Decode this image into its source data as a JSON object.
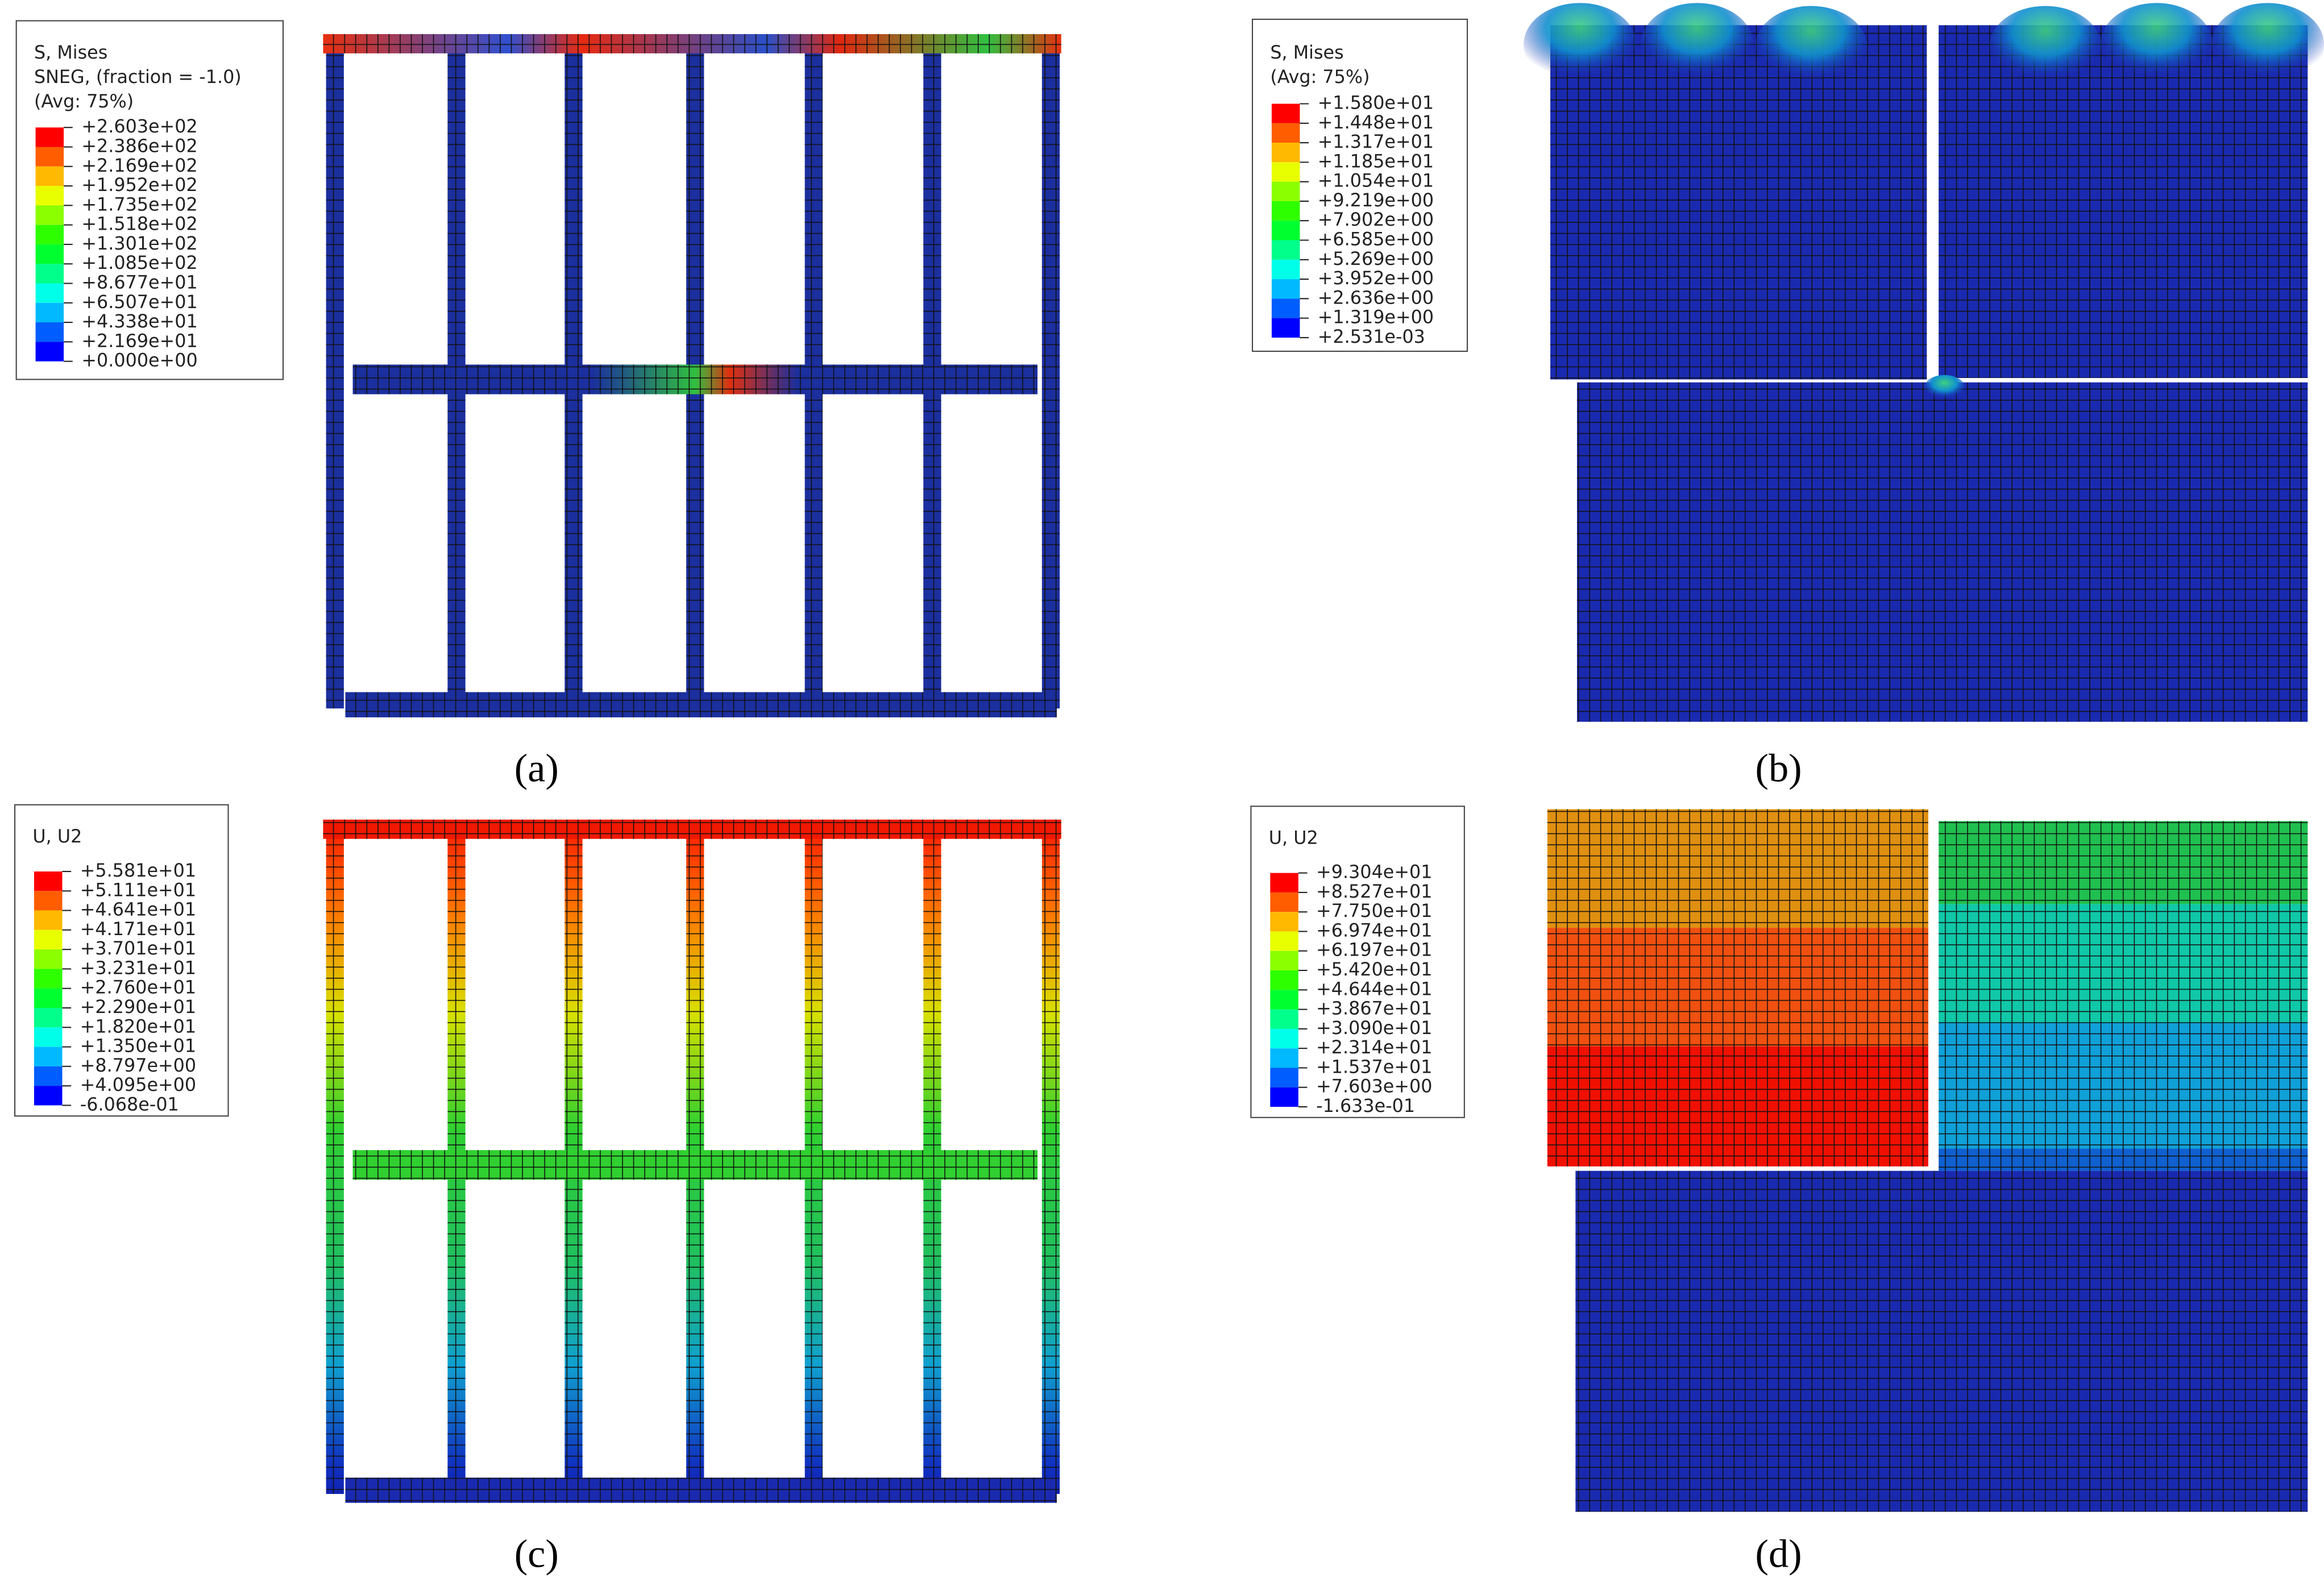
{
  "panels": [
    {
      "label": "(a)",
      "legend": {
        "title": [
          "S, Mises",
          "SNEG, (fraction = -1.0)",
          "(Avg: 75%)"
        ],
        "values": [
          "+2.603e+02",
          "+2.386e+02",
          "+2.169e+02",
          "+1.952e+02",
          "+1.735e+02",
          "+1.518e+02",
          "+1.301e+02",
          "+1.085e+02",
          "+8.677e+01",
          "+6.507e+01",
          "+4.338e+01",
          "+2.169e+01",
          "+0.000e+00"
        ]
      }
    },
    {
      "label": "(b)",
      "legend": {
        "title": [
          "S, Mises",
          "(Avg: 75%)"
        ],
        "values": [
          "+1.580e+01",
          "+1.448e+01",
          "+1.317e+01",
          "+1.185e+01",
          "+1.054e+01",
          "+9.219e+00",
          "+7.902e+00",
          "+6.585e+00",
          "+5.269e+00",
          "+3.952e+00",
          "+2.636e+00",
          "+1.319e+00",
          "+2.531e-03"
        ]
      }
    },
    {
      "label": "(c)",
      "legend": {
        "title": [
          "U, U2"
        ],
        "values": [
          "+5.581e+01",
          "+5.111e+01",
          "+4.641e+01",
          "+4.171e+01",
          "+3.701e+01",
          "+3.231e+01",
          "+2.760e+01",
          "+2.290e+01",
          "+1.820e+01",
          "+1.350e+01",
          "+8.797e+00",
          "+4.095e+00",
          "-6.068e-01"
        ]
      }
    },
    {
      "label": "(d)",
      "legend": {
        "title": [
          "U, U2"
        ],
        "values": [
          "+9.304e+01",
          "+8.527e+01",
          "+7.750e+01",
          "+6.974e+01",
          "+6.197e+01",
          "+5.420e+01",
          "+4.644e+01",
          "+3.867e+01",
          "+3.090e+01",
          "+2.314e+01",
          "+1.537e+01",
          "+7.603e+00",
          "-1.633e-01"
        ]
      }
    }
  ]
}
